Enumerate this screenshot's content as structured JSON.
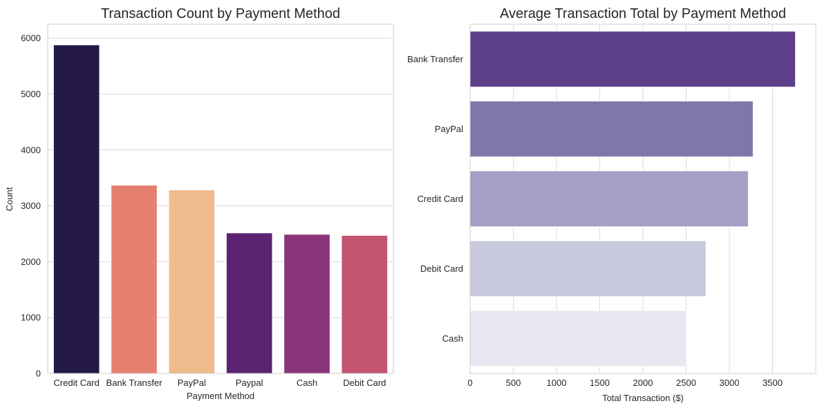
{
  "chart_data": [
    {
      "type": "bar",
      "orientation": "vertical",
      "title": "Transaction Count by Payment Method",
      "xlabel": "Payment Method",
      "ylabel": "Count",
      "categories": [
        "Credit Card",
        "Bank Transfer",
        "PayPal",
        "Paypal",
        "Cash",
        "Debit Card"
      ],
      "values": [
        5880,
        3370,
        3285,
        2515,
        2490,
        2470
      ],
      "colors": [
        "#251a46",
        "#e58070",
        "#efbb8d",
        "#5b2372",
        "#8a3479",
        "#c2546f"
      ],
      "ylim": [
        0,
        6250
      ],
      "yticks": [
        0,
        1000,
        2000,
        3000,
        4000,
        5000,
        6000
      ],
      "grid": "y"
    },
    {
      "type": "bar",
      "orientation": "horizontal",
      "title": "Average Transaction Total by Payment Method",
      "xlabel": "Total Transaction ($)",
      "ylabel": "",
      "categories": [
        "Bank Transfer",
        "PayPal",
        "Credit Card",
        "Debit Card",
        "Cash"
      ],
      "values": [
        3765,
        3275,
        3220,
        2730,
        2505
      ],
      "colors": [
        "#5e3f8a",
        "#7f77aa",
        "#a49fc4",
        "#c9c9de",
        "#e7e6f1"
      ],
      "xlim": [
        0,
        4000
      ],
      "xticks": [
        0,
        500,
        1000,
        1500,
        2000,
        2500,
        3000,
        3500
      ],
      "grid": "x"
    }
  ]
}
